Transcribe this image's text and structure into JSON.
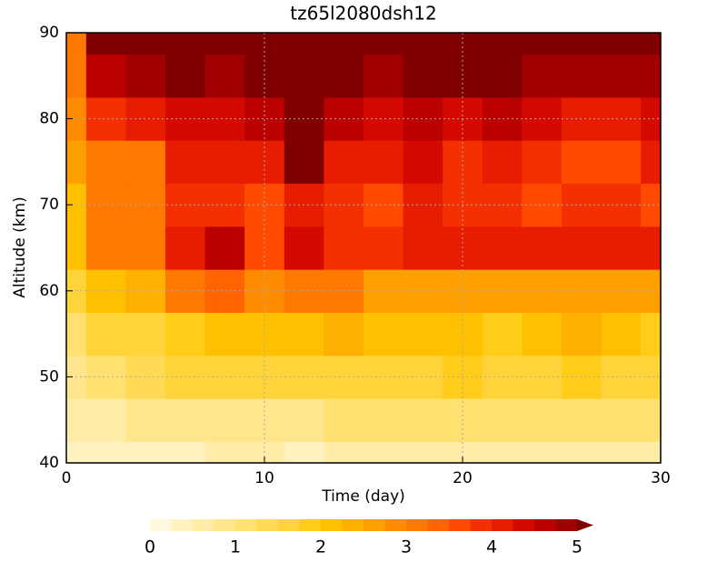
{
  "chart_data": {
    "type": "heatmap",
    "title": "tz65l2080dsh12",
    "x_label": "Time (day)",
    "y_label": "Altitude (km)",
    "x": [
      0,
      2,
      4,
      6,
      8,
      10,
      12,
      14,
      16,
      18,
      20,
      22,
      24,
      26,
      28,
      30
    ],
    "y": [
      40,
      45,
      50,
      55,
      60,
      65,
      70,
      75,
      80,
      85,
      90
    ],
    "z": [
      [
        0.3,
        0.4,
        0.4,
        0.4,
        0.5,
        0.5,
        0.4,
        0.6,
        0.6,
        0.7,
        0.7,
        0.6,
        0.6,
        0.5,
        0.5,
        0.5
      ],
      [
        0.6,
        0.7,
        0.8,
        0.8,
        0.9,
        0.9,
        0.9,
        1.0,
        1.0,
        1.1,
        1.1,
        1.0,
        1.0,
        1.1,
        1.0,
        1.0
      ],
      [
        0.8,
        1.2,
        1.3,
        1.5,
        1.6,
        1.6,
        1.5,
        1.6,
        1.6,
        1.7,
        1.8,
        1.7,
        1.7,
        1.8,
        1.7,
        1.6
      ],
      [
        1.0,
        1.5,
        1.6,
        1.8,
        2.0,
        2.2,
        2.0,
        2.3,
        2.0,
        2.0,
        2.2,
        1.9,
        2.0,
        2.4,
        2.1,
        1.9
      ],
      [
        1.5,
        2.2,
        2.3,
        3.0,
        3.4,
        2.8,
        3.2,
        3.0,
        2.5,
        2.6,
        2.7,
        2.5,
        2.6,
        2.6,
        2.6,
        2.5
      ],
      [
        2.0,
        3.2,
        3.0,
        4.2,
        4.7,
        3.6,
        4.4,
        3.8,
        3.9,
        4.0,
        4.0,
        4.1,
        4.1,
        4.0,
        4.1,
        4.0
      ],
      [
        2.2,
        3.0,
        3.2,
        3.8,
        3.9,
        3.6,
        4.1,
        3.8,
        3.7,
        4.0,
        3.9,
        3.8,
        3.6,
        3.9,
        3.8,
        3.7
      ],
      [
        2.5,
        3.2,
        3.0,
        4.0,
        4.2,
        4.2,
        5.1,
        4.2,
        4.1,
        4.4,
        3.8,
        4.1,
        3.9,
        3.6,
        3.7,
        4.0
      ],
      [
        2.8,
        3.8,
        4.1,
        4.3,
        4.3,
        4.5,
        5.3,
        4.5,
        4.4,
        4.6,
        4.4,
        4.5,
        4.3,
        4.2,
        4.0,
        4.3
      ],
      [
        3.0,
        4.6,
        4.8,
        5.1,
        4.8,
        5.0,
        5.4,
        5.2,
        4.9,
        5.1,
        5.1,
        5.0,
        4.8,
        4.9,
        4.9,
        4.8
      ],
      [
        3.2,
        5.5,
        5.5,
        5.5,
        5.5,
        5.5,
        5.5,
        5.5,
        5.5,
        5.5,
        5.5,
        5.5,
        5.5,
        5.5,
        5.5,
        5.5
      ]
    ],
    "xlim": [
      0,
      30
    ],
    "xticks": [
      0,
      10,
      20,
      30
    ],
    "ylim": [
      40,
      90
    ],
    "yticks": [
      40,
      50,
      60,
      70,
      80,
      90
    ],
    "grid": true,
    "clim": [
      0,
      5
    ],
    "colorbar_ticks": [
      0,
      1,
      2,
      3,
      4,
      5
    ],
    "colors": [
      "#fff8dc",
      "#fff2c0",
      "#ffeca6",
      "#ffe68c",
      "#ffe070",
      "#ffda55",
      "#ffd43b",
      "#ffcc1a",
      "#ffc000",
      "#ffb000",
      "#ffa000",
      "#ff8c00",
      "#ff7800",
      "#ff6400",
      "#ff4a00",
      "#f53000",
      "#e81c00",
      "#d40a00",
      "#bb0000",
      "#a00000",
      "#800000"
    ]
  }
}
